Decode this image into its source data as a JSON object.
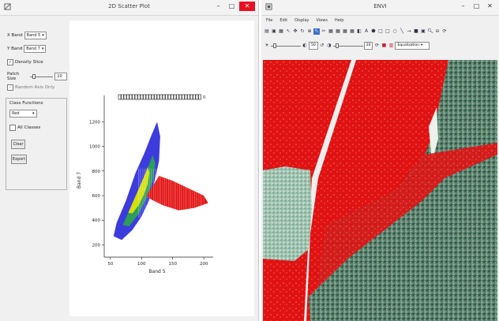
{
  "scatter_window": {
    "title": "2D Scatter Plot",
    "minimize": "–",
    "maximize": "□",
    "close": "✕",
    "x_band_label": "X Band",
    "x_band_value": "Band 5",
    "y_band_label": "Y Band",
    "y_band_value": "Band 7",
    "density_slice_label": "Density Slice",
    "patch_size_label": "Patch Size",
    "patch_size_value": "10",
    "random_axis_label": "Random Axis Only",
    "class_functions_label": "Class Functions",
    "class_value": "Red",
    "all_classes_label": "All Classes",
    "clear_button": "Clear",
    "export_button": "Export"
  },
  "envi_window": {
    "title": "ENVI",
    "minimize": "–",
    "maximize": "□",
    "close": "✕",
    "menu": [
      "File",
      "Edit",
      "Display",
      "Views",
      "Help"
    ],
    "toolbar1_icons": [
      "open-icon",
      "save-icon",
      "print-icon",
      "cursor-icon",
      "pan-icon",
      "rotate-icon",
      "zoom-in-icon",
      "zoom-out-icon",
      "grid-icon",
      "layer-icon",
      "text-icon",
      "polygon-icon",
      "rectangle-icon",
      "ellipse-icon",
      "line-icon",
      "arrow-icon",
      "export-icon",
      "chip-icon",
      "zoom-icon",
      "magnify-icon",
      "refresh-icon"
    ],
    "brightness_value": "50",
    "contrast_value": "20",
    "stretch_value": "Equalization"
  },
  "chart_data": {
    "type": "scatter",
    "title": "",
    "xlabel": "Band 5",
    "ylabel": "Band 7",
    "xticks": [
      50,
      100,
      150,
      200
    ],
    "yticks": [
      200,
      400,
      600,
      800,
      1000,
      1200
    ],
    "xlim": [
      40,
      210
    ],
    "ylim": [
      100,
      1350
    ],
    "grid": false,
    "density_slice": true,
    "colors": {
      "low_density": "#1a1ad8",
      "medium_density": "#2aa84a",
      "high_density": "#e8e600",
      "roi_class": "#e31010"
    },
    "density_cloud_outline": [
      [
        55,
        270
      ],
      [
        60,
        380
      ],
      [
        75,
        560
      ],
      [
        90,
        780
      ],
      [
        105,
        950
      ],
      [
        115,
        1080
      ],
      [
        125,
        1200
      ],
      [
        130,
        1080
      ],
      [
        128,
        880
      ],
      [
        120,
        700
      ],
      [
        112,
        560
      ],
      [
        100,
        430
      ],
      [
        85,
        320
      ],
      [
        68,
        240
      ]
    ],
    "density_core": [
      [
        70,
        360
      ],
      [
        82,
        500
      ],
      [
        95,
        650
      ],
      [
        108,
        800
      ],
      [
        118,
        930
      ],
      [
        122,
        860
      ],
      [
        118,
        720
      ],
      [
        108,
        580
      ],
      [
        95,
        450
      ],
      [
        80,
        350
      ]
    ],
    "roi_region": [
      [
        108,
        600
      ],
      [
        128,
        760
      ],
      [
        150,
        720
      ],
      [
        175,
        660
      ],
      [
        200,
        600
      ],
      [
        207,
        540
      ],
      [
        185,
        500
      ],
      [
        160,
        480
      ],
      [
        135,
        520
      ],
      [
        115,
        570
      ]
    ],
    "colorbar_label": "0"
  }
}
